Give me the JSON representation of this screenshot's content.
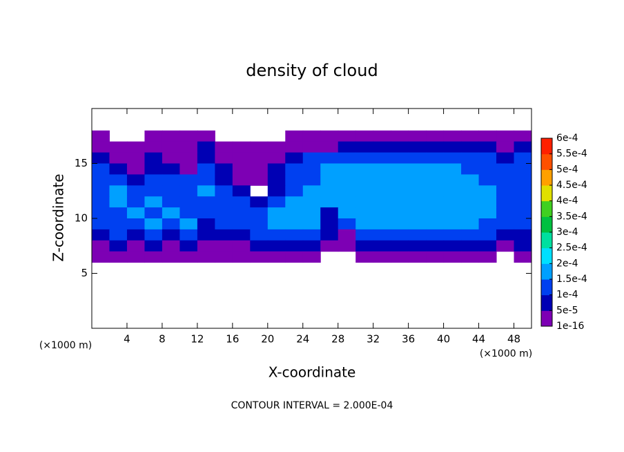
{
  "chart_data": {
    "type": "contour",
    "title": "density of cloud",
    "x_label": "X-coordinate",
    "y_label": "Z-coordinate",
    "x_unit": "(×1000 m)",
    "y_unit": "(×1000 m)",
    "annotation": "CONTOUR INTERVAL = 2.000E-04",
    "xlim": [
      0,
      50
    ],
    "ylim": [
      0,
      20
    ],
    "xticks": [
      4,
      8,
      12,
      16,
      20,
      24,
      28,
      32,
      36,
      40,
      44,
      48
    ],
    "yticks": [
      5,
      10,
      15
    ],
    "x": [
      1,
      3,
      5,
      7,
      9,
      11,
      13,
      15,
      17,
      19,
      21,
      23,
      25,
      27,
      29,
      31,
      33,
      35,
      37,
      39,
      41,
      43,
      45,
      47,
      49
    ],
    "z": [
      17.5,
      16.5,
      15.5,
      14.5,
      13.5,
      12.5,
      11.5,
      10.5,
      9.5,
      8.5,
      7.5,
      6.5
    ],
    "values": [
      [
        2e-05,
        null,
        null,
        2e-05,
        2e-05,
        2e-05,
        2e-05,
        null,
        null,
        null,
        null,
        2e-05,
        2e-05,
        2e-05,
        2e-05,
        2e-05,
        2e-05,
        2e-05,
        2e-05,
        2e-05,
        2e-05,
        2e-05,
        2e-05,
        2e-05,
        2e-05
      ],
      [
        2e-05,
        2e-05,
        2e-05,
        2e-05,
        2e-05,
        2e-05,
        7e-05,
        2e-05,
        2e-05,
        2e-05,
        2e-05,
        2e-05,
        2e-05,
        2e-05,
        7e-05,
        7e-05,
        7e-05,
        7e-05,
        7e-05,
        7e-05,
        7e-05,
        7e-05,
        7e-05,
        2e-05,
        7e-05
      ],
      [
        7e-05,
        2e-05,
        2e-05,
        7e-05,
        2e-05,
        2e-05,
        7e-05,
        2e-05,
        2e-05,
        2e-05,
        2e-05,
        7e-05,
        0.00012,
        0.00012,
        0.00012,
        0.00012,
        0.00012,
        0.00012,
        0.00012,
        0.00012,
        0.00012,
        0.00012,
        0.00012,
        7e-05,
        0.00012
      ],
      [
        0.00012,
        7e-05,
        2e-05,
        7e-05,
        7e-05,
        2e-05,
        0.00012,
        7e-05,
        2e-05,
        2e-05,
        7e-05,
        0.00012,
        0.00012,
        0.00017,
        0.00017,
        0.00017,
        0.00017,
        0.00017,
        0.00017,
        0.00017,
        0.00017,
        0.00012,
        0.00012,
        0.00012,
        0.00012
      ],
      [
        0.00012,
        0.00012,
        7e-05,
        0.00012,
        0.00012,
        0.00012,
        0.00012,
        7e-05,
        2e-05,
        2e-05,
        7e-05,
        0.00012,
        0.00012,
        0.00017,
        0.00017,
        0.00017,
        0.00017,
        0.00017,
        0.00017,
        0.00017,
        0.00017,
        0.00017,
        0.00012,
        0.00012,
        0.00012
      ],
      [
        0.00012,
        0.00017,
        0.00012,
        0.00012,
        0.00012,
        0.00012,
        0.00017,
        0.00012,
        7e-05,
        null,
        7e-05,
        0.00012,
        0.00017,
        0.00017,
        0.00017,
        0.00017,
        0.00017,
        0.00017,
        0.00017,
        0.00017,
        0.00017,
        0.00017,
        0.00017,
        0.00012,
        0.00012
      ],
      [
        0.00012,
        0.00017,
        0.00012,
        0.00017,
        0.00012,
        0.00012,
        0.00012,
        0.00012,
        0.00012,
        7e-05,
        0.00012,
        0.00017,
        0.00017,
        0.00017,
        0.00017,
        0.00017,
        0.00017,
        0.00017,
        0.00017,
        0.00017,
        0.00017,
        0.00017,
        0.00017,
        0.00012,
        0.00012
      ],
      [
        0.00012,
        0.00012,
        0.00017,
        0.00012,
        0.00017,
        0.00012,
        0.00012,
        0.00012,
        0.00012,
        0.00012,
        0.00017,
        0.00017,
        0.00017,
        7e-05,
        0.00017,
        0.00017,
        0.00017,
        0.00017,
        0.00017,
        0.00017,
        0.00017,
        0.00017,
        0.00017,
        0.00012,
        0.00012
      ],
      [
        0.00012,
        0.00012,
        0.00012,
        0.00017,
        0.00012,
        0.00017,
        7e-05,
        0.00012,
        0.00012,
        0.00012,
        0.00017,
        0.00017,
        0.00017,
        7e-05,
        0.00012,
        0.00017,
        0.00017,
        0.00017,
        0.00017,
        0.00017,
        0.00017,
        0.00017,
        0.00012,
        0.00012,
        0.00012
      ],
      [
        7e-05,
        0.00012,
        7e-05,
        0.00012,
        7e-05,
        0.00012,
        7e-05,
        7e-05,
        7e-05,
        0.00012,
        0.00012,
        0.00012,
        0.00012,
        7e-05,
        2e-05,
        0.00012,
        0.00012,
        0.00012,
        0.00012,
        0.00012,
        0.00012,
        0.00012,
        0.00012,
        7e-05,
        7e-05
      ],
      [
        2e-05,
        7e-05,
        2e-05,
        7e-05,
        2e-05,
        7e-05,
        2e-05,
        2e-05,
        2e-05,
        7e-05,
        7e-05,
        7e-05,
        7e-05,
        2e-05,
        2e-05,
        7e-05,
        7e-05,
        7e-05,
        7e-05,
        7e-05,
        7e-05,
        7e-05,
        7e-05,
        2e-05,
        7e-05
      ],
      [
        2e-05,
        2e-05,
        2e-05,
        2e-05,
        2e-05,
        2e-05,
        2e-05,
        2e-05,
        2e-05,
        2e-05,
        2e-05,
        2e-05,
        2e-05,
        null,
        null,
        2e-05,
        2e-05,
        2e-05,
        2e-05,
        2e-05,
        2e-05,
        2e-05,
        2e-05,
        null,
        2e-05
      ]
    ],
    "colorbar": {
      "levels": [
        {
          "value": 1e-16,
          "label": "1e-16"
        },
        {
          "value": 5e-05,
          "label": "5e-5"
        },
        {
          "value": 0.0001,
          "label": "1e-4"
        },
        {
          "value": 0.00015,
          "label": "1.5e-4"
        },
        {
          "value": 0.0002,
          "label": "2e-4"
        },
        {
          "value": 0.00025,
          "label": "2.5e-4"
        },
        {
          "value": 0.0003,
          "label": "3e-4"
        },
        {
          "value": 0.00035,
          "label": "3.5e-4"
        },
        {
          "value": 0.0004,
          "label": "4e-4"
        },
        {
          "value": 0.00045,
          "label": "4.5e-4"
        },
        {
          "value": 0.0005,
          "label": "5e-4"
        },
        {
          "value": 0.00055,
          "label": "5.5e-4"
        },
        {
          "value": 0.0006,
          "label": "6e-4"
        }
      ],
      "colors": [
        "#7d00b4",
        "#0000b4",
        "#0040f0",
        "#00a0ff",
        "#00e0ff",
        "#00e0a0",
        "#00c040",
        "#40d020",
        "#e0e000",
        "#ffa000",
        "#ff5000",
        "#ff2000"
      ]
    }
  }
}
